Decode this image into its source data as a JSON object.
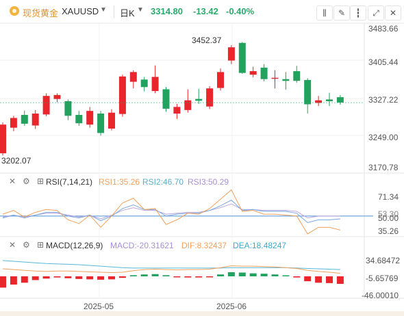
{
  "header": {
    "symbol_name": "现货黄金",
    "symbol_code": "XAUUSD",
    "period": "日K",
    "last_price": "3314.80",
    "change": "-13.42",
    "change_pct": "-0.40%",
    "icons": [
      "indicator-icon",
      "draw-icon",
      "candle-type-icon",
      "fullscreen-icon",
      "close-icon"
    ]
  },
  "main_chart": {
    "price_axis": [
      "3483.66",
      "3405.44",
      "3327.22",
      "3249.00",
      "3170.78"
    ],
    "high_label": "3452.37",
    "low_label": "3202.07",
    "current_price_label": "3314.80"
  },
  "rsi": {
    "name": "RSI(7,14,21)",
    "rsi1": "RSI1:35.26",
    "rsi2": "RSI2:46.70",
    "rsi3": "RSI3:50.29",
    "axis": [
      "71.34",
      "50.00",
      "35.26"
    ],
    "overlap_labels": [
      "53.30",
      "50.29",
      "46.70"
    ]
  },
  "macd": {
    "name": "MACD(12,26,9)",
    "macd": "MACD:-20.31621",
    "dif": "DIF:8.32437",
    "dea": "DEA:18.48247",
    "axis": [
      "34.68472",
      "-5.65769",
      "-46.00010"
    ]
  },
  "time_axis": [
    "2025-05",
    "2025-06"
  ],
  "colors": {
    "up": "#e8262b",
    "down": "#21a35f",
    "rsi1": "#f0a05a",
    "rsi2": "#7aa7e0",
    "rsi3": "#b9a5dd",
    "dif": "#f0a05a",
    "dea": "#56b8d8"
  },
  "candles": [
    [
      3200,
      3265,
      3195,
      3270
    ],
    [
      3258,
      3280,
      3250,
      3285
    ],
    [
      3287,
      3267,
      3262,
      3297
    ],
    [
      3263,
      3290,
      3255,
      3298
    ],
    [
      3288,
      3330,
      3284,
      3336
    ],
    [
      3323,
      3332,
      3316,
      3336
    ],
    [
      3318,
      3285,
      3275,
      3322
    ],
    [
      3287,
      3268,
      3262,
      3296
    ],
    [
      3265,
      3296,
      3258,
      3305
    ],
    [
      3290,
      3246,
      3240,
      3296
    ],
    [
      3256,
      3292,
      3252,
      3300
    ],
    [
      3289,
      3374,
      3283,
      3378
    ],
    [
      3362,
      3384,
      3347,
      3388
    ],
    [
      3367,
      3350,
      3340,
      3373
    ],
    [
      3341,
      3373,
      3336,
      3399
    ],
    [
      3345,
      3301,
      3294,
      3350
    ],
    [
      3290,
      3305,
      3278,
      3312
    ],
    [
      3298,
      3320,
      3292,
      3345
    ],
    [
      3323,
      3319,
      3312,
      3346
    ],
    [
      3306,
      3347,
      3300,
      3352
    ],
    [
      3348,
      3384,
      3342,
      3392
    ],
    [
      3410,
      3440,
      3402,
      3445
    ],
    [
      3450,
      3382,
      3380,
      3452
    ],
    [
      3378,
      3386,
      3372,
      3396
    ],
    [
      3394,
      3368,
      3363,
      3402
    ],
    [
      3370,
      3371,
      3347,
      3388
    ],
    [
      3368,
      3364,
      3344,
      3384
    ],
    [
      3386,
      3364,
      3360,
      3398
    ],
    [
      3366,
      3311,
      3290,
      3370
    ],
    [
      3314,
      3320,
      3307,
      3330
    ],
    [
      3322,
      3318,
      3307,
      3337
    ],
    [
      3327,
      3315,
      3310,
      3332
    ]
  ],
  "rsi_series": {
    "rsi1": [
      52,
      56,
      49,
      54,
      57,
      56,
      46,
      42,
      51,
      38,
      50,
      64,
      69,
      57,
      58,
      41,
      46,
      53,
      52,
      58,
      68,
      78,
      55,
      56,
      52,
      52,
      51,
      50,
      31,
      38,
      38,
      35
    ],
    "rsi2": [
      48,
      51,
      48,
      51,
      54,
      54,
      50,
      48,
      51,
      45,
      50,
      58,
      62,
      57,
      57,
      50,
      52,
      53,
      53,
      56,
      61,
      67,
      56,
      57,
      55,
      55,
      55,
      53,
      43,
      46,
      46,
      47
    ],
    "rsi3": [
      49,
      51,
      49,
      51,
      53,
      53,
      51,
      49,
      51,
      47,
      51,
      56,
      59,
      56,
      56,
      52,
      53,
      54,
      54,
      56,
      59,
      63,
      57,
      57,
      56,
      56,
      56,
      55,
      48,
      50,
      50,
      50
    ]
  },
  "macd_series": {
    "hist": [
      -30,
      -22,
      -17,
      -10,
      -6,
      -3,
      -5,
      -7,
      -8,
      -9,
      -8,
      -4,
      3,
      5,
      6,
      3,
      -2,
      -3,
      -3,
      -2,
      5,
      11,
      10,
      8,
      7,
      5,
      0,
      -3,
      -13,
      -17,
      -18,
      -20
    ],
    "dif": [
      20,
      18,
      16,
      14,
      13,
      14,
      14,
      13,
      12,
      11,
      10,
      11,
      15,
      18,
      19,
      18,
      17,
      18,
      18,
      19,
      23,
      28,
      27,
      27,
      26,
      25,
      23,
      21,
      16,
      13,
      11,
      8
    ],
    "dea": [
      42,
      40,
      38,
      36,
      34,
      33,
      32,
      31,
      29,
      27,
      25,
      23,
      22,
      22,
      22,
      22,
      22,
      22,
      22,
      22,
      22,
      23,
      23,
      23,
      23,
      23,
      23,
      22,
      21,
      20,
      19,
      18
    ]
  }
}
